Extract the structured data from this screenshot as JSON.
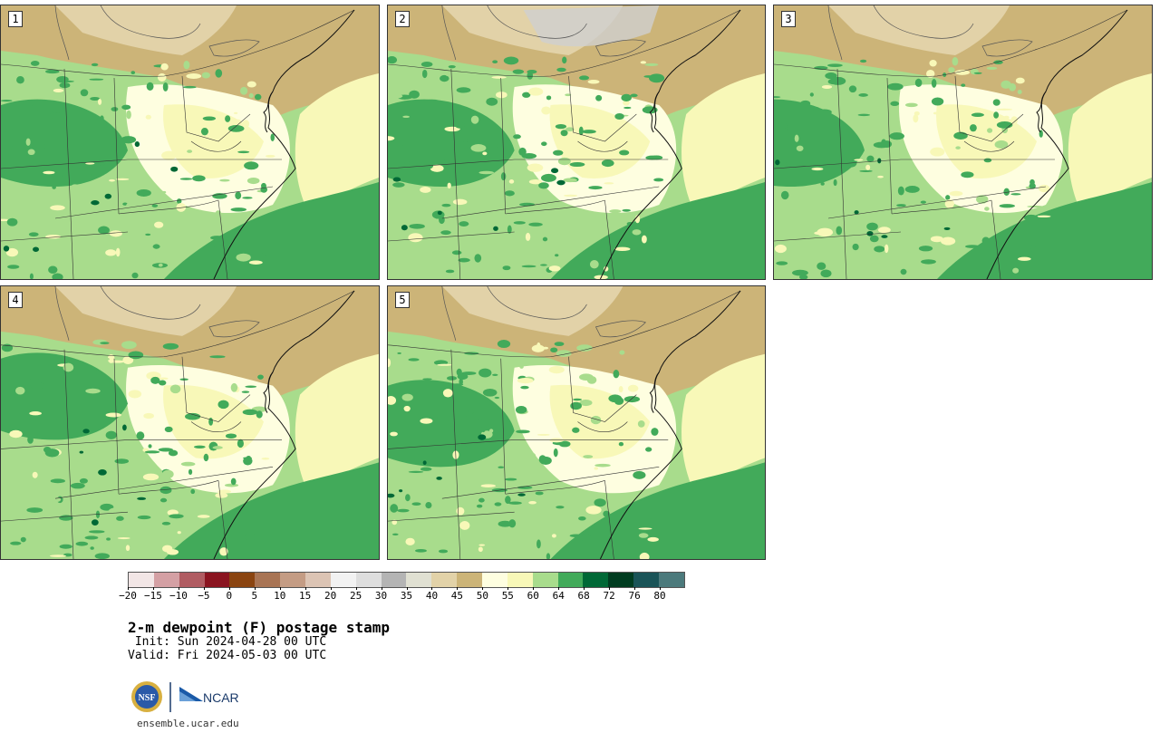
{
  "panels": [
    {
      "label": "1"
    },
    {
      "label": "2"
    },
    {
      "label": "3"
    },
    {
      "label": "4"
    },
    {
      "label": "5"
    }
  ],
  "colorbar": {
    "colors": [
      "#f2e6e6",
      "#d4a0a4",
      "#b05c62",
      "#8a1420",
      "#8a4410",
      "#a87454",
      "#c49c84",
      "#dcc4b4",
      "#f2f2f2",
      "#dedede",
      "#b4b4b4",
      "#e0e0d2",
      "#e2d2a8",
      "#ccb478",
      "#fefee0",
      "#f8f8b8",
      "#a8dc8c",
      "#42aa5a",
      "#006836",
      "#003c20",
      "#1a5458",
      "#4c7a7c"
    ],
    "tick_labels": [
      "−20",
      "−15",
      "−10",
      "−5",
      "0",
      "5",
      "10",
      "15",
      "20",
      "25",
      "30",
      "35",
      "40",
      "45",
      "50",
      "55",
      "60",
      "64",
      "68",
      "72",
      "76",
      "80"
    ]
  },
  "title": "2-m dewpoint (F) postage stamp",
  "init": " Init: Sun 2024-04-28 00 UTC",
  "valid": "Valid: Fri 2024-05-03 00 UTC",
  "logos": {
    "nsf_text": "NSF",
    "ncar_text": "NCAR"
  },
  "site": "ensemble.ucar.edu"
}
